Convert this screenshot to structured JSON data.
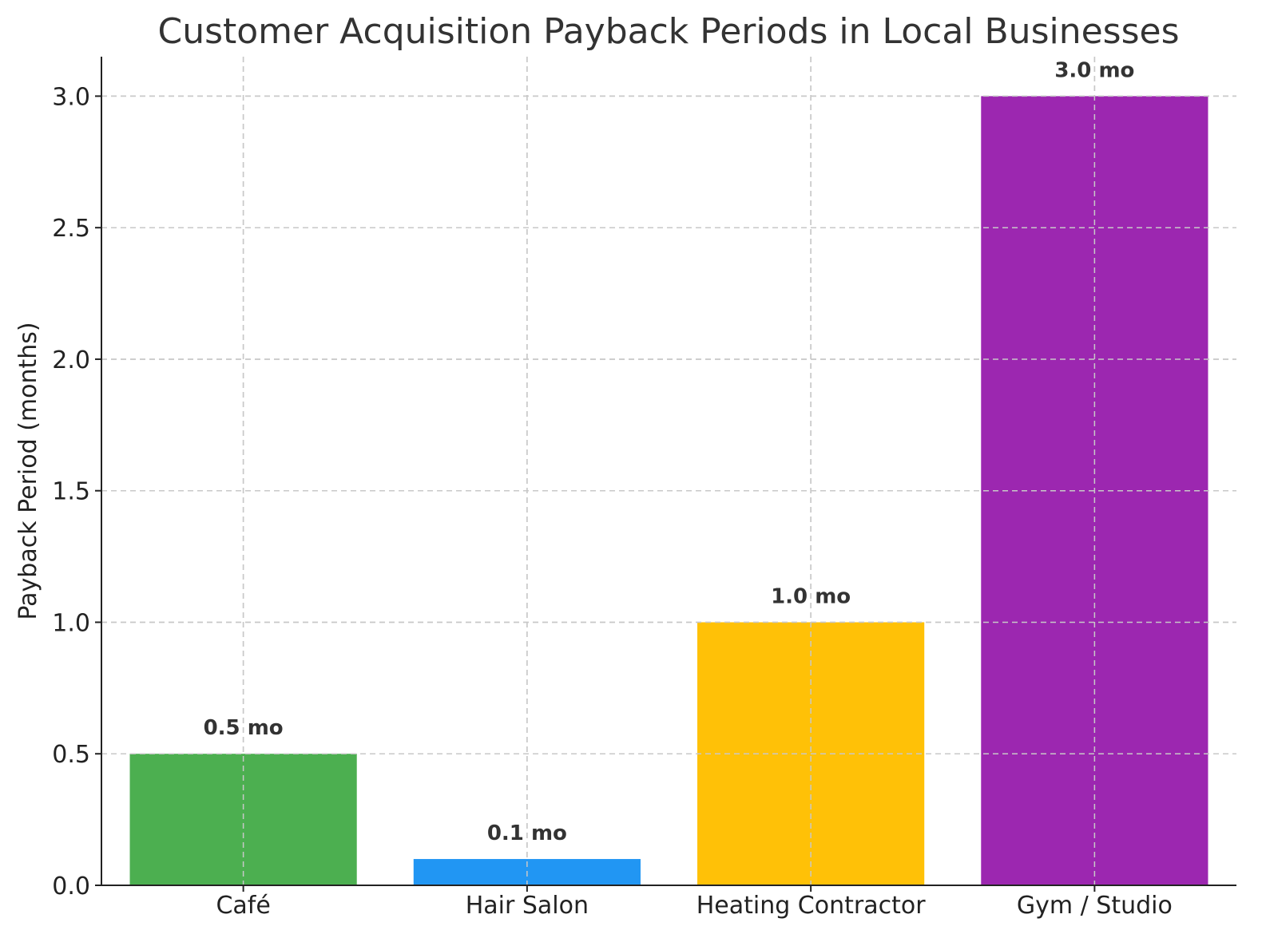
{
  "chart_data": {
    "type": "bar",
    "title": "Customer Acquisition Payback Periods in Local Businesses",
    "xlabel": "",
    "ylabel": "Payback Period (months)",
    "categories": [
      "Café",
      "Hair Salon",
      "Heating Contractor",
      "Gym / Studio"
    ],
    "values": [
      0.5,
      0.1,
      1.0,
      3.0
    ],
    "data_labels": [
      "0.5 mo",
      "0.1 mo",
      "1.0 mo",
      "3.0 mo"
    ],
    "colors": [
      "#4caf50",
      "#2196f3",
      "#ffc107",
      "#9c27b0"
    ],
    "ylim": [
      0,
      3.15
    ],
    "yticks": [
      0.0,
      0.5,
      1.0,
      1.5,
      2.0,
      2.5,
      3.0
    ],
    "ytick_labels": [
      "0.0",
      "0.5",
      "1.0",
      "1.5",
      "2.0",
      "2.5",
      "3.0"
    ],
    "grid": true,
    "legend": "none"
  }
}
